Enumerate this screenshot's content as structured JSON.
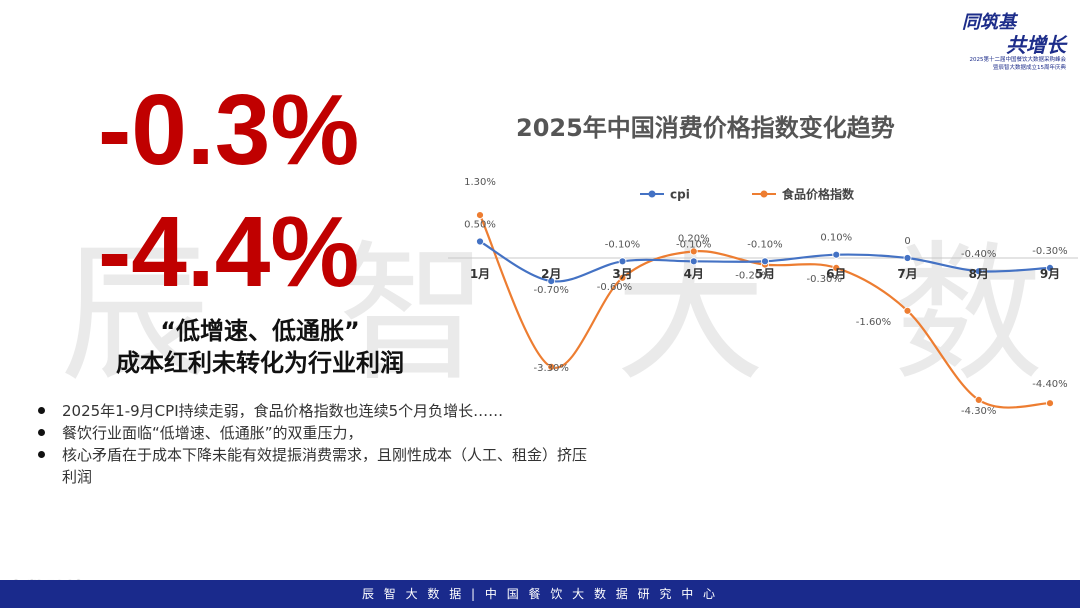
{
  "watermark": "辰 智 大 数 据",
  "logo": {
    "line1": "同筑基",
    "line2": "共增长",
    "sub1": "2025第十二届中国餐饮大数据采购峰会",
    "sub2": "暨辰智大数据成立15周年庆典"
  },
  "headline": {
    "cpi": "-0.3%",
    "food": "-4.4%",
    "sub1": "“低增速、低通胀”",
    "sub2": "成本红利未转化为行业利润"
  },
  "bullets": [
    "2025年1-9月CPI持续走弱，食品价格指数也连续5个月负增长……",
    "餐饮行业面临“低增速、低通胀”的双重压力，",
    "核心矛盾在于成本下降未能有效提振消费需求，且刚性成本（人工、租金）挤压利润"
  ],
  "footer": "辰 智 大 数 据 | 中 国 餐 饮 大 数 据 研 究 中 心",
  "bottom_watermark": "大数跨境",
  "colors": {
    "red": "#c00000",
    "cpi": "#4472c4",
    "food": "#ed7d31",
    "footer": "#1a2a8c"
  },
  "chart_data": {
    "type": "line",
    "title": "2025年中国消费价格指数变化趋势",
    "categories": [
      "1月",
      "2月",
      "3月",
      "4月",
      "5月",
      "6月",
      "7月",
      "8月",
      "9月"
    ],
    "series": [
      {
        "name": "cpi",
        "values": [
          0.5,
          -0.7,
          -0.1,
          -0.1,
          -0.1,
          0.1,
          0,
          -0.4,
          -0.3
        ],
        "labels": [
          "0.50%",
          "-0.70%",
          "-0.10%",
          "-0.10%",
          "-0.10%",
          "0.10%",
          "0",
          "-0.40%",
          "-0.30%"
        ]
      },
      {
        "name": "食品价格指数",
        "values": [
          1.3,
          -3.3,
          -0.6,
          0.2,
          -0.2,
          -0.3,
          -1.6,
          -4.3,
          -4.4
        ],
        "labels": [
          "1.30%",
          "-3.30%",
          "-0.60%",
          "0.20%",
          "-0.20%",
          "-0.30%",
          "-1.60%",
          "-4.30%",
          "-4.40%"
        ]
      }
    ],
    "legend": "top-center",
    "grid": false
  }
}
